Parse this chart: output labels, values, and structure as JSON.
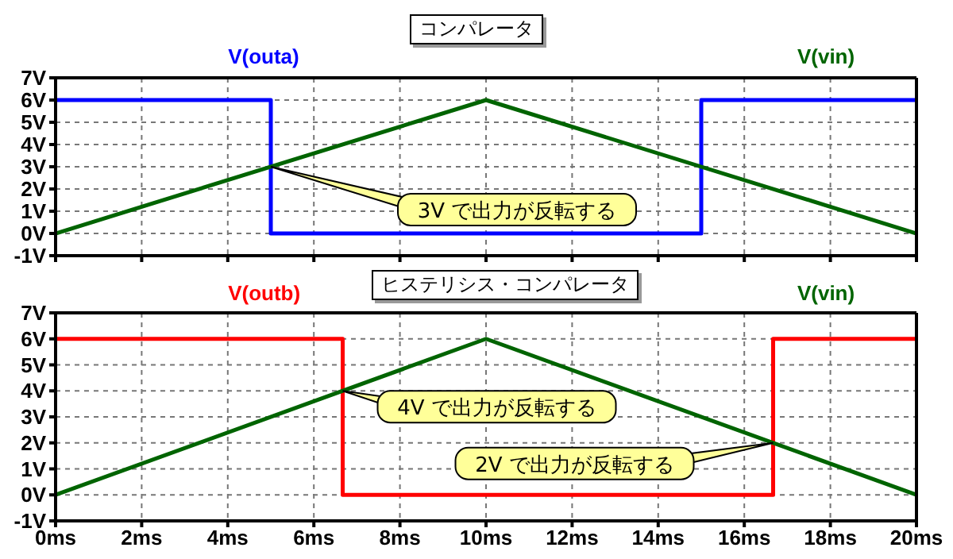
{
  "chart_data": [
    {
      "type": "line",
      "title": "コンパレータ",
      "xlim": [
        0,
        20
      ],
      "xticks": [
        {
          "value": 0,
          "label": null
        },
        {
          "value": 2,
          "label": null
        },
        {
          "value": 4,
          "label": null
        },
        {
          "value": 6,
          "label": null
        },
        {
          "value": 8,
          "label": null
        },
        {
          "value": 10,
          "label": null
        },
        {
          "value": 12,
          "label": null
        },
        {
          "value": 14,
          "label": null
        },
        {
          "value": 16,
          "label": null
        },
        {
          "value": 18,
          "label": null
        },
        {
          "value": 20,
          "label": null
        }
      ],
      "ylim": [
        -1,
        7
      ],
      "yticks": [
        {
          "value": -1,
          "label": "-1V"
        },
        {
          "value": 0,
          "label": "0V"
        },
        {
          "value": 1,
          "label": "1V"
        },
        {
          "value": 2,
          "label": "2V"
        },
        {
          "value": 3,
          "label": "3V"
        },
        {
          "value": 4,
          "label": "4V"
        },
        {
          "value": 5,
          "label": "5V"
        },
        {
          "value": 6,
          "label": "6V"
        },
        {
          "value": 7,
          "label": "7V"
        }
      ],
      "tick_labels": "y",
      "grid": true,
      "legend": "top",
      "line_style": "solid",
      "marker": "none",
      "series": [
        {
          "name": "V(outa)",
          "color": "#0000ff",
          "x": [
            0,
            5,
            5,
            15,
            15,
            20
          ],
          "values": [
            6,
            6,
            0,
            0,
            6,
            6
          ]
        },
        {
          "name": "V(vin)",
          "color": "#006400",
          "x": [
            0,
            10,
            20
          ],
          "values": [
            0,
            6,
            0
          ]
        }
      ],
      "annotations": [
        {
          "text": "3V で出力が反転する",
          "x": 5,
          "y": 3
        }
      ]
    },
    {
      "type": "line",
      "title": "ヒステリシス・コンパレータ",
      "xlim": [
        0,
        20
      ],
      "xticks": [
        {
          "value": 0,
          "label": "0ms"
        },
        {
          "value": 2,
          "label": "2ms"
        },
        {
          "value": 4,
          "label": "4ms"
        },
        {
          "value": 6,
          "label": "6ms"
        },
        {
          "value": 8,
          "label": "8ms"
        },
        {
          "value": 10,
          "label": "10ms"
        },
        {
          "value": 12,
          "label": "12ms"
        },
        {
          "value": 14,
          "label": "14ms"
        },
        {
          "value": 16,
          "label": "16ms"
        },
        {
          "value": 18,
          "label": "18ms"
        },
        {
          "value": 20,
          "label": "20ms"
        }
      ],
      "ylim": [
        -1,
        7
      ],
      "yticks": [
        {
          "value": -1,
          "label": "-1V"
        },
        {
          "value": 0,
          "label": "0V"
        },
        {
          "value": 1,
          "label": "1V"
        },
        {
          "value": 2,
          "label": "2V"
        },
        {
          "value": 3,
          "label": "3V"
        },
        {
          "value": 4,
          "label": "4V"
        },
        {
          "value": 5,
          "label": "5V"
        },
        {
          "value": 6,
          "label": "6V"
        },
        {
          "value": 7,
          "label": "7V"
        }
      ],
      "grid": true,
      "legend": "top",
      "line_style": "solid",
      "marker": "none",
      "series": [
        {
          "name": "V(outb)",
          "color": "#ff0000",
          "x": [
            0,
            6.67,
            6.67,
            16.67,
            16.67,
            20
          ],
          "values": [
            6,
            6,
            0,
            0,
            6,
            6
          ]
        },
        {
          "name": "V(vin)",
          "color": "#006400",
          "x": [
            0,
            10,
            20
          ],
          "values": [
            0,
            6,
            0
          ]
        }
      ],
      "annotations": [
        {
          "text": "4V で出力が反転する",
          "x": 6.67,
          "y": 4
        },
        {
          "text": "2V で出力が反転する",
          "x": 16.67,
          "y": 2
        }
      ]
    }
  ]
}
